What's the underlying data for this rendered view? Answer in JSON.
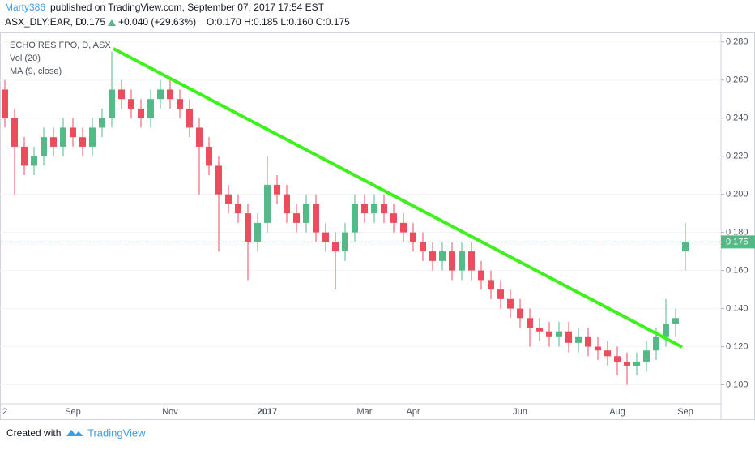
{
  "header": {
    "author": "Marty386",
    "published": "published on TradingView.com, September 07, 2017 17:54 EST",
    "symbol": "ASX_DLY:EAR, D",
    "last": "0.175",
    "change": "+0.040 (+29.63%)",
    "ohlc": "O:0.170 H:0.185 L:0.160 C:0.175"
  },
  "chart_data": {
    "type": "candlestick",
    "legend": [
      "ECHO RES FPO, D, ASX",
      "Vol (20)",
      "MA (9, close)"
    ],
    "categories": [
      "2",
      null,
      null,
      null,
      null,
      null,
      null,
      "Sep",
      null,
      null,
      null,
      null,
      null,
      null,
      null,
      null,
      null,
      "Nov",
      null,
      null,
      null,
      null,
      null,
      null,
      null,
      null,
      null,
      "2017",
      null,
      null,
      null,
      null,
      null,
      null,
      null,
      null,
      null,
      "Mar",
      null,
      null,
      null,
      null,
      "Apr",
      null,
      null,
      null,
      null,
      null,
      null,
      null,
      null,
      null,
      null,
      "Jun",
      null,
      null,
      null,
      null,
      null,
      null,
      null,
      null,
      null,
      "Aug",
      null,
      null,
      null,
      null,
      null,
      null,
      "Sep"
    ],
    "open": [
      0.255,
      0.24,
      0.225,
      0.215,
      0.22,
      0.23,
      0.225,
      0.235,
      0.23,
      0.225,
      0.235,
      0.24,
      0.255,
      0.25,
      0.245,
      0.24,
      0.25,
      0.255,
      0.25,
      0.245,
      0.235,
      0.225,
      0.215,
      0.2,
      0.195,
      0.19,
      0.175,
      0.185,
      0.205,
      0.2,
      0.19,
      0.185,
      0.195,
      0.18,
      0.175,
      0.17,
      0.18,
      0.195,
      0.19,
      0.195,
      0.19,
      0.185,
      0.18,
      0.175,
      0.17,
      0.165,
      0.17,
      0.16,
      0.17,
      0.16,
      0.155,
      0.15,
      0.145,
      0.14,
      0.135,
      0.13,
      0.128,
      0.125,
      0.128,
      0.122,
      0.125,
      0.12,
      0.118,
      0.115,
      0.112,
      0.11,
      0.112,
      0.118,
      0.125,
      0.132,
      0.17
    ],
    "high": [
      0.26,
      0.245,
      0.23,
      0.225,
      0.235,
      0.235,
      0.24,
      0.24,
      0.235,
      0.24,
      0.245,
      0.275,
      0.26,
      0.255,
      0.25,
      0.255,
      0.26,
      0.26,
      0.255,
      0.25,
      0.24,
      0.23,
      0.22,
      0.205,
      0.2,
      0.195,
      0.19,
      0.22,
      0.21,
      0.205,
      0.195,
      0.2,
      0.2,
      0.185,
      0.18,
      0.185,
      0.2,
      0.2,
      0.2,
      0.2,
      0.195,
      0.19,
      0.185,
      0.18,
      0.175,
      0.175,
      0.175,
      0.175,
      0.175,
      0.165,
      0.16,
      0.155,
      0.15,
      0.145,
      0.14,
      0.135,
      0.133,
      0.133,
      0.133,
      0.13,
      0.13,
      0.125,
      0.123,
      0.12,
      0.117,
      0.117,
      0.123,
      0.13,
      0.145,
      0.14,
      0.185
    ],
    "low": [
      0.235,
      0.2,
      0.21,
      0.21,
      0.215,
      0.22,
      0.22,
      0.225,
      0.22,
      0.22,
      0.23,
      0.235,
      0.245,
      0.24,
      0.235,
      0.235,
      0.245,
      0.245,
      0.24,
      0.23,
      0.2,
      0.21,
      0.17,
      0.19,
      0.185,
      0.155,
      0.17,
      0.18,
      0.195,
      0.185,
      0.18,
      0.18,
      0.175,
      0.17,
      0.15,
      0.165,
      0.175,
      0.185,
      0.185,
      0.185,
      0.18,
      0.175,
      0.17,
      0.165,
      0.16,
      0.16,
      0.155,
      0.155,
      0.155,
      0.15,
      0.145,
      0.14,
      0.135,
      0.13,
      0.12,
      0.123,
      0.12,
      0.12,
      0.117,
      0.117,
      0.115,
      0.113,
      0.11,
      0.105,
      0.1,
      0.105,
      0.107,
      0.113,
      0.12,
      0.125,
      0.16
    ],
    "close": [
      0.24,
      0.225,
      0.215,
      0.22,
      0.23,
      0.225,
      0.235,
      0.23,
      0.225,
      0.235,
      0.24,
      0.255,
      0.25,
      0.245,
      0.24,
      0.25,
      0.255,
      0.25,
      0.245,
      0.235,
      0.225,
      0.215,
      0.2,
      0.195,
      0.19,
      0.175,
      0.185,
      0.205,
      0.2,
      0.19,
      0.185,
      0.195,
      0.18,
      0.175,
      0.17,
      0.18,
      0.195,
      0.19,
      0.195,
      0.19,
      0.185,
      0.18,
      0.175,
      0.17,
      0.165,
      0.17,
      0.16,
      0.17,
      0.16,
      0.155,
      0.15,
      0.145,
      0.14,
      0.135,
      0.13,
      0.128,
      0.125,
      0.128,
      0.122,
      0.125,
      0.12,
      0.118,
      0.115,
      0.112,
      0.11,
      0.112,
      0.118,
      0.125,
      0.132,
      0.135,
      0.175
    ],
    "up_color": "#53b987",
    "down_color": "#eb4d5c",
    "last_price": 0.175,
    "ylim": [
      0.09,
      0.285
    ],
    "yticks": [
      {
        "value": 0.1,
        "label": "0.100"
      },
      {
        "value": 0.12,
        "label": "0.120"
      },
      {
        "value": 0.14,
        "label": "0.140"
      },
      {
        "value": 0.16,
        "label": "0.160"
      },
      {
        "value": 0.18,
        "label": "0.180"
      },
      {
        "value": 0.2,
        "label": "0.200"
      },
      {
        "value": 0.22,
        "label": "0.220"
      },
      {
        "value": 0.24,
        "label": "0.240"
      },
      {
        "value": 0.26,
        "label": "0.260"
      },
      {
        "value": 0.28,
        "label": "0.280"
      }
    ],
    "grid": true
  },
  "footer": {
    "created": "Created with",
    "brand": "TradingView"
  }
}
